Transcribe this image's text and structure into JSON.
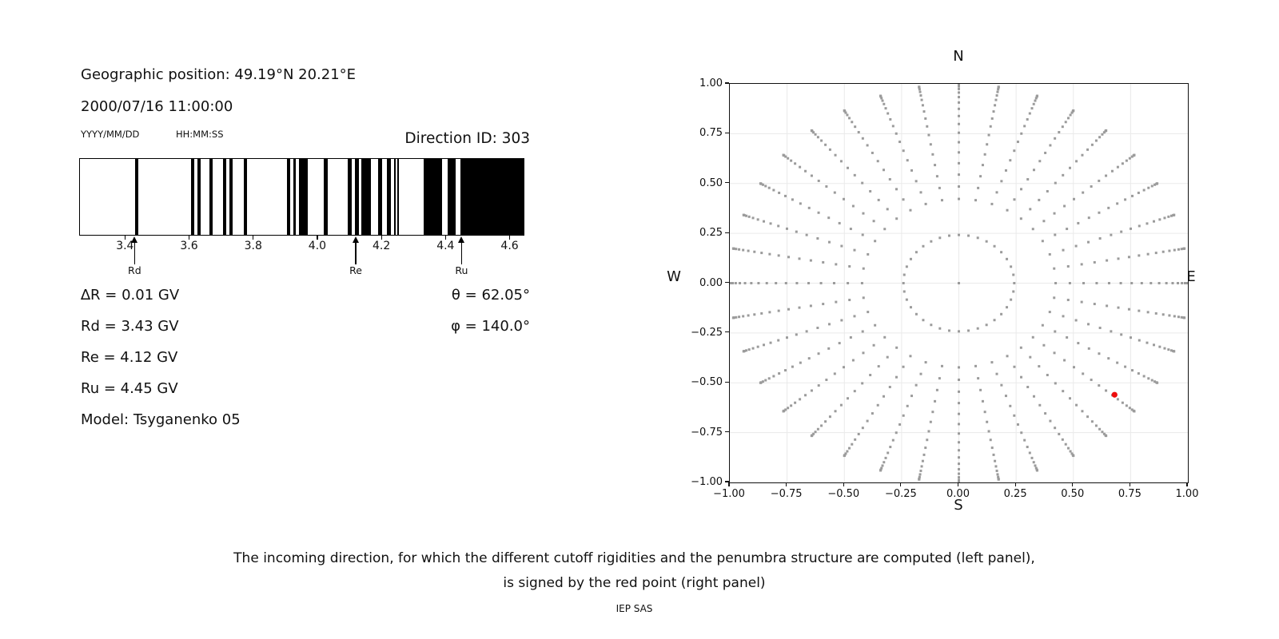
{
  "header": {
    "geo_position": "Geographic position: 49.19°N 20.21°E",
    "datetime": "2000/07/16 11:00:00",
    "date_format_label": "YYYY/MM/DD",
    "time_format_label": "HH:MM:SS",
    "direction_id": "Direction ID: 303"
  },
  "info": {
    "left_rows": [
      "∆R = 0.01 GV",
      "Rd = 3.43 GV",
      "Re = 4.12 GV",
      "Ru = 4.45 GV",
      "Model: Tsyganenko 05"
    ],
    "right_rows": [
      "θ = 62.05°",
      "φ = 140.0°"
    ]
  },
  "caption": {
    "line1": "The incoming direction, for which the different cutoff rigidities and the penumbra structure are computed (left panel),",
    "line2": "is signed by the red point (right panel)",
    "credit": "IEP SAS"
  },
  "colors": {
    "dot_gray": "#9b9b9b",
    "red_point": "#ee0d0d",
    "grid": "#eaeaea",
    "band_black": "#000000"
  },
  "chart_data": [
    {
      "type": "bar",
      "name": "penumbra-barcode",
      "xlabel_unit": "GV",
      "xlim": [
        3.257,
        4.646
      ],
      "xticks": [
        "3.4",
        "3.6",
        "3.8",
        "4.0",
        "4.2",
        "4.4",
        "4.6"
      ],
      "xtick_values": [
        3.4,
        3.6,
        3.8,
        4.0,
        4.2,
        4.4,
        4.6
      ],
      "forbidden_bands_gv": [
        [
          3.428,
          3.44
        ],
        [
          3.603,
          3.613
        ],
        [
          3.623,
          3.633
        ],
        [
          3.661,
          3.671
        ],
        [
          3.703,
          3.713
        ],
        [
          3.723,
          3.733
        ],
        [
          3.767,
          3.779
        ],
        [
          3.902,
          3.912
        ],
        [
          3.922,
          3.93
        ],
        [
          3.941,
          3.968
        ],
        [
          4.018,
          4.03
        ],
        [
          4.093,
          4.105
        ],
        [
          4.116,
          4.127
        ],
        [
          4.135,
          4.165
        ],
        [
          4.188,
          4.2
        ],
        [
          4.215,
          4.227
        ],
        [
          4.236,
          4.243
        ],
        [
          4.246,
          4.253
        ],
        [
          4.33,
          4.386
        ],
        [
          4.403,
          4.428
        ],
        [
          4.444,
          4.646
        ]
      ],
      "markers": [
        {
          "label": "Rd",
          "value": 3.43
        },
        {
          "label": "Re",
          "value": 4.12
        },
        {
          "label": "Ru",
          "value": 4.45
        }
      ]
    },
    {
      "type": "scatter",
      "name": "incoming-direction-grid",
      "xlim": [
        -1,
        1
      ],
      "ylim": [
        -1,
        1
      ],
      "xticks": [
        "−1.00",
        "−0.75",
        "−0.50",
        "−0.25",
        "0.00",
        "0.25",
        "0.50",
        "0.75",
        "1.00"
      ],
      "xtick_values": [
        -1,
        -0.75,
        -0.5,
        -0.25,
        0,
        0.25,
        0.5,
        0.75,
        1
      ],
      "yticks": [
        "1.00",
        "0.75",
        "0.50",
        "0.25",
        "0.00",
        "−0.25",
        "−0.50",
        "−0.75",
        "−1.00"
      ],
      "ytick_values": [
        1,
        0.75,
        0.5,
        0.25,
        0,
        -0.25,
        -0.5,
        -0.75,
        -1
      ],
      "grid": true,
      "compass": {
        "top": "N",
        "right": "E",
        "bottom": "S",
        "left": "W"
      },
      "grid_azimuth_step_deg": 10,
      "grid_zenith_deg": [
        14,
        25,
        29,
        33,
        37,
        41,
        45,
        49,
        53,
        57,
        61,
        65,
        69,
        73,
        77,
        81,
        85,
        88,
        90
      ],
      "radius_formula": "r = sin(zenith)",
      "center_point": [
        0,
        0
      ],
      "red_point": {
        "x": 0.68,
        "y": -0.56,
        "theta_deg": 62.05,
        "phi_deg": 140.0
      }
    }
  ]
}
